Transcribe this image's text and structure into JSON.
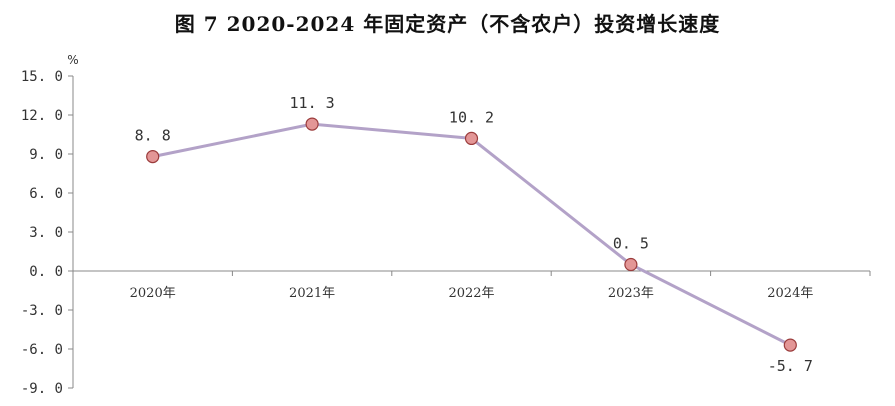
{
  "chart_data": {
    "type": "line",
    "title": "图 7   2020-2024 年固定资产（不含农户）投资增长速度",
    "ylabel": "%",
    "categories": [
      "2020年",
      "2021年",
      "2022年",
      "2023年",
      "2024年"
    ],
    "values": [
      8.8,
      11.3,
      10.2,
      0.5,
      -5.7
    ],
    "value_labels": [
      "8. 8",
      "11. 3",
      "10. 2",
      "0. 5",
      "-5. 7"
    ],
    "yticks": [
      15,
      12,
      9,
      6,
      3,
      0,
      -3,
      -6,
      -9
    ],
    "ytick_labels": [
      "15. 0",
      "12. 0",
      "9. 0",
      "6. 0",
      "3. 0",
      "0. 0",
      "-3. 0",
      "-6. 0",
      "-9. 0"
    ],
    "ylim": [
      -9,
      15
    ],
    "grid": false,
    "line_color": "#b3a2c8",
    "marker_fill": "#e39696",
    "marker_stroke": "#9b3c3c"
  }
}
